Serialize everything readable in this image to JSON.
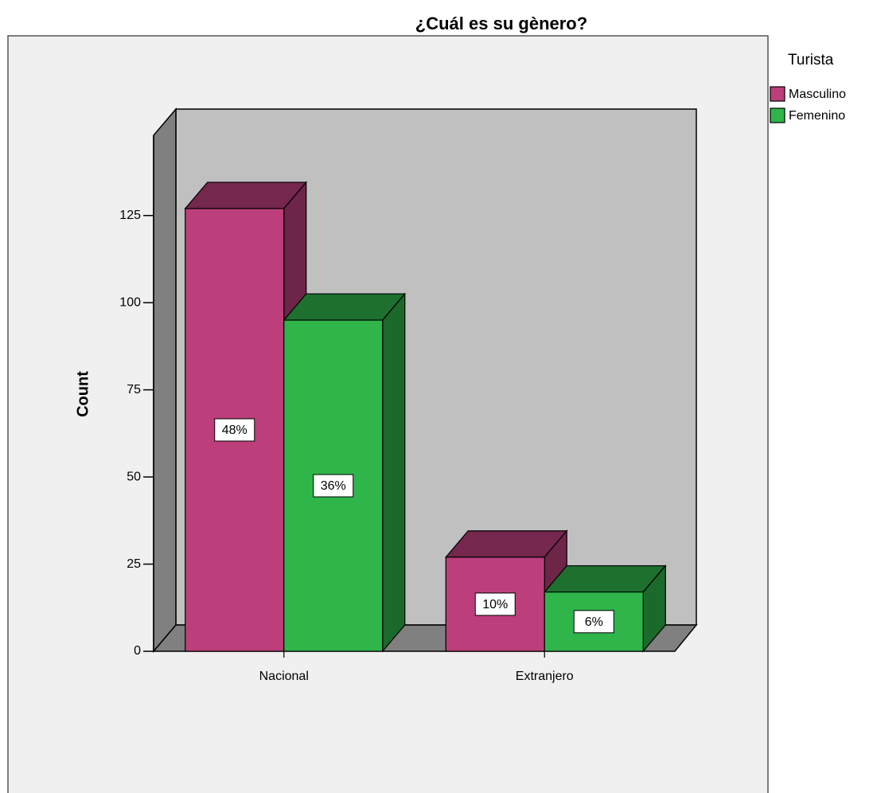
{
  "chart_data": {
    "type": "bar3d",
    "title": "¿Cuál es su gènero?",
    "y_label": "Count",
    "legend_title": "Turista",
    "categories": [
      "Nacional",
      "Extranjero"
    ],
    "series": [
      {
        "name": "Masculino",
        "color": "#bc3f7c",
        "values": [
          127,
          27
        ],
        "percent_labels": [
          "48%",
          "10%"
        ]
      },
      {
        "name": "Femenino",
        "color": "#2fb54a",
        "values": [
          95,
          17
        ],
        "percent_labels": [
          "36%",
          "6%"
        ]
      }
    ],
    "ylim": [
      0,
      148
    ],
    "yticks": [
      0,
      25,
      50,
      75,
      100,
      125
    ],
    "legend": "right"
  }
}
